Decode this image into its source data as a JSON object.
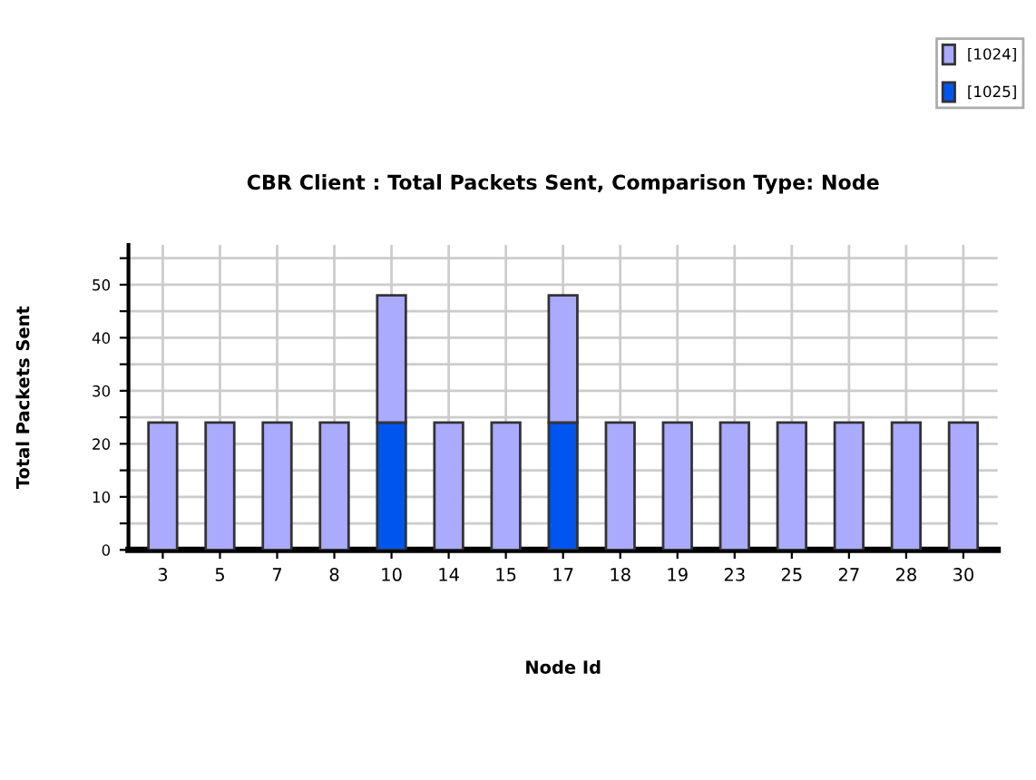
{
  "chart_data": {
    "type": "bar",
    "stacked": true,
    "title": "CBR Client : Total Packets Sent, Comparison Type: Node",
    "xlabel": "Node Id",
    "ylabel": "Total Packets Sent",
    "categories": [
      "3",
      "5",
      "7",
      "8",
      "10",
      "14",
      "15",
      "17",
      "18",
      "19",
      "23",
      "25",
      "27",
      "28",
      "30"
    ],
    "series": [
      {
        "name": "[1025]",
        "color": "#0055ee",
        "values": [
          null,
          null,
          null,
          null,
          24,
          null,
          null,
          24,
          null,
          null,
          null,
          null,
          null,
          null,
          null
        ]
      },
      {
        "name": "[1024]",
        "color": "#aaaaff",
        "values": [
          24,
          24,
          24,
          24,
          24,
          24,
          24,
          24,
          24,
          24,
          24,
          24,
          24,
          24,
          24
        ]
      }
    ],
    "ylim": [
      0,
      57.5
    ],
    "yticks": [
      0,
      {
        "value": 5,
        "label": null
      },
      10,
      {
        "value": 15,
        "label": null
      },
      20,
      {
        "value": 25,
        "label": null
      },
      30,
      {
        "value": 35,
        "label": null
      },
      40,
      {
        "value": 45,
        "label": null
      },
      50,
      {
        "value": 55,
        "label": null
      }
    ],
    "grid": true,
    "legend": "top right"
  }
}
